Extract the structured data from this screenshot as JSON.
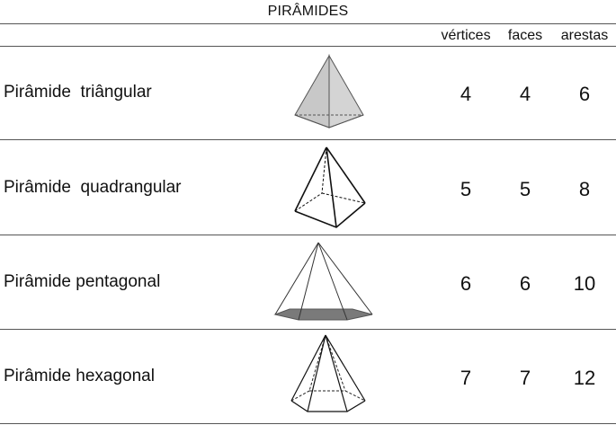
{
  "table": {
    "title": "PIRÂMIDES",
    "headers": {
      "vertices": "vértices",
      "faces": "faces",
      "arestas": "arestas"
    },
    "rows": [
      {
        "name": "Pirâmide  triângular",
        "vertices": "4",
        "faces": "4",
        "arestas": "6",
        "figure": "triangular-pyramid"
      },
      {
        "name": "Pirâmide  quadrangular",
        "vertices": "5",
        "faces": "5",
        "arestas": "8",
        "figure": "square-pyramid"
      },
      {
        "name": "Pirâmide pentagonal",
        "vertices": "6",
        "faces": "6",
        "arestas": "10",
        "figure": "pentagonal-pyramid"
      },
      {
        "name": "Pirâmide hexagonal",
        "vertices": "7",
        "faces": "7",
        "arestas": "12",
        "figure": "hexagonal-pyramid"
      }
    ]
  },
  "colors": {
    "line": "#555555",
    "shade": "#c8c8c8",
    "base_shade": "#7a7a7a"
  }
}
